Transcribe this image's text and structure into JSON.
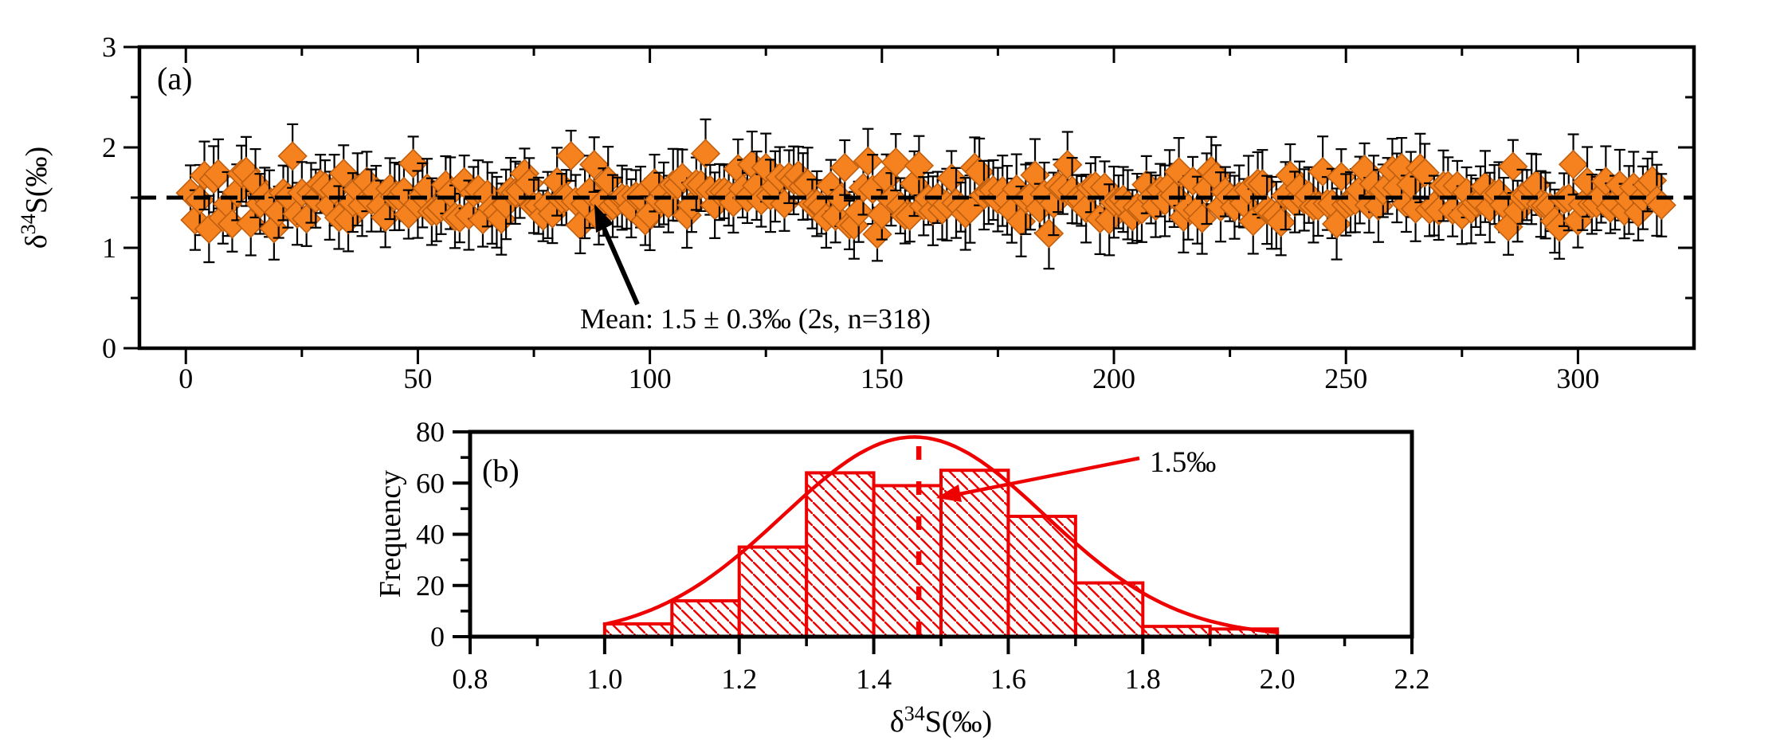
{
  "figure_background": "#ffffff",
  "colors": {
    "orange_fill": "#F5821F",
    "orange_edge": "#C05F10",
    "orange_text": "#F5821F",
    "red": "#EF0000",
    "black": "#000000"
  },
  "chart_data": [
    {
      "id": "panel_a",
      "type": "scatter",
      "panel_label": "(a)",
      "ylabel_parts": {
        "base": "δ",
        "sup": "34",
        "rest": "S(‰)"
      },
      "xlabel": "",
      "xlim": [
        -10,
        325
      ],
      "ylim": [
        0,
        3
      ],
      "x_major_ticks": [
        0,
        50,
        100,
        150,
        200,
        250,
        300
      ],
      "x_minor_ticks": [
        25,
        75,
        125,
        175,
        225,
        275
      ],
      "y_major_ticks": [
        0,
        1,
        2,
        3
      ],
      "y_minor_ticks": [
        0.5,
        1.5,
        2.5
      ],
      "n_points": 318,
      "mean": 1.5,
      "sd_1s": 0.15,
      "two_s": 0.3,
      "mean_line_y": 1.5,
      "y_clamp": [
        0.92,
        2.04
      ],
      "error_bar_half_min": 0.24,
      "error_bar_half_span": 0.12,
      "seed": 20240318,
      "marker": "diamond",
      "annotation_text": "Mean: 1.5 ± 0.3‰ (2s, n=318)",
      "grid": false,
      "legend": "none"
    },
    {
      "id": "panel_b",
      "type": "histogram",
      "panel_label": "(b)",
      "xlabel_parts": {
        "base": "δ",
        "sup": "34",
        "rest": "S(‰)"
      },
      "ylabel": "Frequency",
      "xlim": [
        0.8,
        2.2
      ],
      "ylim": [
        0,
        80
      ],
      "x_major_ticks": [
        0.8,
        1.0,
        1.2,
        1.4,
        1.6,
        1.8,
        2.0,
        2.2
      ],
      "x_major_tick_labels": [
        "0.8",
        "1.0",
        "1.2",
        "1.4",
        "1.6",
        "1.8",
        "2.0",
        "2.2"
      ],
      "x_minor_ticks": [
        0.9,
        1.1,
        1.3,
        1.5,
        1.7,
        1.9,
        2.1
      ],
      "y_major_ticks": [
        0,
        20,
        40,
        60,
        80
      ],
      "y_minor_ticks": [
        10,
        30,
        50,
        70
      ],
      "bin_edges": [
        1.0,
        1.1,
        1.2,
        1.3,
        1.4,
        1.5,
        1.6,
        1.7,
        1.8,
        1.9,
        2.0
      ],
      "counts": [
        5,
        14,
        35,
        64,
        59,
        65,
        47,
        21,
        4,
        3
      ],
      "gauss_curve": {
        "peak": 78,
        "mu": 1.46,
        "sigma": 0.195,
        "domain": [
          1.0,
          2.0
        ]
      },
      "dashed_line_x": 1.467,
      "annotation_text": "1.5‰",
      "grid": false,
      "legend": "none"
    }
  ]
}
